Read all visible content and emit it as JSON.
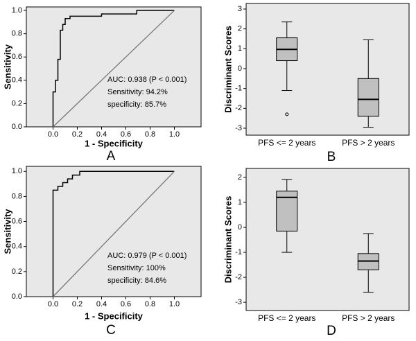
{
  "chart_data": [
    {
      "type": "line",
      "panel_label": "A",
      "xlabel": "1 - Specificity",
      "ylabel": "Sensitivity",
      "xlim": [
        -0.22,
        1.22
      ],
      "ylim": [
        0,
        1.03
      ],
      "xticks": [
        {
          "value": 0,
          "label": "0.0"
        },
        {
          "value": 0.2,
          "label": "0.2"
        },
        {
          "value": 0.4,
          "label": "0.4"
        },
        {
          "value": 0.6,
          "label": "0.6"
        },
        {
          "value": 0.8,
          "label": "0.8"
        },
        {
          "value": 1,
          "label": "1.0"
        }
      ],
      "yticks": [
        {
          "value": 0,
          "label": "0.0"
        },
        {
          "value": 0.2,
          "label": "0.2"
        },
        {
          "value": 0.4,
          "label": "0.4"
        },
        {
          "value": 0.6,
          "label": "0.6"
        },
        {
          "value": 0.8,
          "label": "0.8"
        },
        {
          "value": 1,
          "label": "1.0"
        }
      ],
      "series": [
        {
          "color": "#000000",
          "x": [
            0,
            0,
            0.02,
            0.02,
            0.04,
            0.04,
            0.06,
            0.06,
            0.08,
            0.08,
            0.1,
            0.1,
            0.14,
            0.14,
            0.4,
            0.4,
            0.69,
            0.69,
            1
          ],
          "values": [
            0,
            0.3,
            0.3,
            0.4,
            0.4,
            0.58,
            0.58,
            0.83,
            0.83,
            0.88,
            0.88,
            0.93,
            0.93,
            0.95,
            0.95,
            0.97,
            0.97,
            1,
            1
          ]
        },
        {
          "color": "#777777",
          "x": [
            0,
            1
          ],
          "values": [
            0,
            1
          ]
        }
      ],
      "annotations": [
        "AUC: 0.938 (P < 0.001)",
        "Sensitivity: 94.2%",
        "specificity: 85.7%"
      ]
    },
    {
      "type": "box",
      "panel_label": "B",
      "ylabel": "Discriminant Scores",
      "categories": [
        "PFS <= 2 years",
        "PFS > 2 years"
      ],
      "ylim": [
        -3.35,
        3.28
      ],
      "yticks": [
        -3,
        -2,
        -1,
        0,
        1,
        2,
        3
      ],
      "color": "#c0c0c0",
      "boxes": [
        {
          "min": -1.1,
          "q1": 0.4,
          "median": 0.97,
          "q3": 1.55,
          "max": 2.35,
          "outliers": [
            -2.3
          ]
        },
        {
          "min": -2.95,
          "q1": -2.4,
          "median": -1.55,
          "q3": -0.5,
          "max": 1.45,
          "outliers": []
        }
      ]
    },
    {
      "type": "line",
      "panel_label": "C",
      "xlabel": "1 - Specificity",
      "ylabel": "Sensitivity",
      "xlim": [
        -0.22,
        1.22
      ],
      "ylim": [
        0,
        1.04
      ],
      "xticks": [
        {
          "value": 0,
          "label": "0.0"
        },
        {
          "value": 0.2,
          "label": "0.2"
        },
        {
          "value": 0.4,
          "label": "0.4"
        },
        {
          "value": 0.6,
          "label": "0.6"
        },
        {
          "value": 0.8,
          "label": "0.8"
        },
        {
          "value": 1,
          "label": "1.0"
        }
      ],
      "yticks": [
        {
          "value": 0,
          "label": "0.0"
        },
        {
          "value": 0.2,
          "label": "0.2"
        },
        {
          "value": 0.4,
          "label": "0.4"
        },
        {
          "value": 0.6,
          "label": "0.6"
        },
        {
          "value": 0.8,
          "label": "0.8"
        },
        {
          "value": 1,
          "label": "1.0"
        }
      ],
      "series": [
        {
          "color": "#000000",
          "x": [
            0,
            0,
            0.04,
            0.04,
            0.08,
            0.08,
            0.12,
            0.12,
            0.16,
            0.16,
            0.22,
            0.22,
            1
          ],
          "values": [
            0,
            0.85,
            0.85,
            0.88,
            0.88,
            0.91,
            0.91,
            0.94,
            0.94,
            0.97,
            0.97,
            1,
            1
          ]
        },
        {
          "color": "#777777",
          "x": [
            0,
            1
          ],
          "values": [
            0,
            1
          ]
        }
      ],
      "annotations": [
        "AUC: 0.979 (P < 0.001)",
        "Sensitivity: 100%",
        "specificity: 84.6%"
      ]
    },
    {
      "type": "box",
      "panel_label": "D",
      "ylabel": "Discriminant Scores",
      "categories": [
        "PFS <= 2 years",
        "PFS > 2 years"
      ],
      "ylim": [
        -3.33,
        2.36
      ],
      "yticks": [
        -3,
        -2,
        -1,
        0,
        1,
        2
      ],
      "color": "#c0c0c0",
      "boxes": [
        {
          "min": -1.0,
          "q1": -0.15,
          "median": 1.2,
          "q3": 1.45,
          "max": 1.92,
          "outliers": []
        },
        {
          "min": -2.6,
          "q1": -1.7,
          "median": -1.35,
          "q3": -1.05,
          "max": -0.25,
          "outliers": []
        }
      ]
    }
  ]
}
